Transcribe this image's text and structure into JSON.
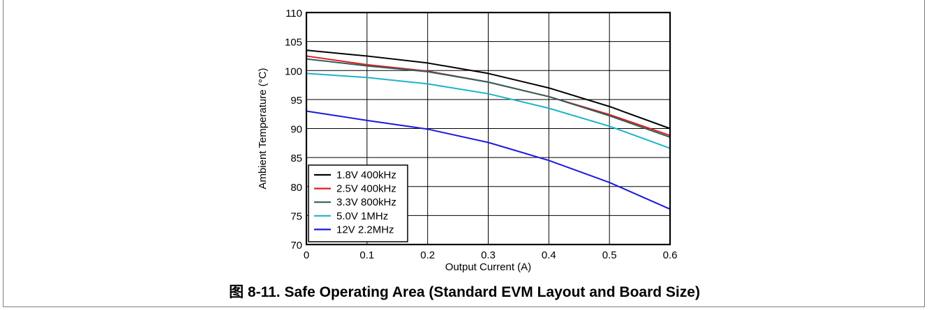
{
  "chart_data": {
    "type": "line",
    "title": "",
    "xlabel": "Output Current (A)",
    "ylabel": "Ambient Temperature (°C)",
    "xlim": [
      0,
      0.6
    ],
    "ylim": [
      70,
      110
    ],
    "xticks": [
      "0",
      "0.1",
      "0.2",
      "0.3",
      "0.4",
      "0.5",
      "0.6"
    ],
    "yticks": [
      "70",
      "75",
      "80",
      "85",
      "90",
      "95",
      "100",
      "105",
      "110"
    ],
    "grid": true,
    "legend_position": "bottom-left",
    "x": [
      0,
      0.1,
      0.2,
      0.3,
      0.4,
      0.5,
      0.6
    ],
    "series": [
      {
        "name": "1.8V 400kHz",
        "color": "#000000",
        "values": [
          103.5,
          102.5,
          101.3,
          99.5,
          97.0,
          93.8,
          90.0
        ]
      },
      {
        "name": "2.5V 400kHz",
        "color": "#e41a1a",
        "values": [
          102.5,
          101.0,
          99.9,
          98.0,
          95.5,
          92.4,
          88.8
        ]
      },
      {
        "name": "3.3V 800kHz",
        "color": "#2e5f5f",
        "values": [
          102.0,
          100.8,
          99.8,
          98.0,
          95.5,
          92.2,
          88.5
        ]
      },
      {
        "name": "5.0V 1MHz",
        "color": "#1cb3c8",
        "values": [
          99.5,
          98.8,
          97.7,
          96.0,
          93.5,
          90.4,
          86.6
        ]
      },
      {
        "name": "12V 2.2MHz",
        "color": "#1a1adc",
        "values": [
          93.0,
          91.4,
          89.9,
          87.6,
          84.5,
          80.7,
          76.1
        ]
      }
    ]
  },
  "caption": "图 8-11. Safe Operating Area (Standard EVM Layout and Board Size)"
}
